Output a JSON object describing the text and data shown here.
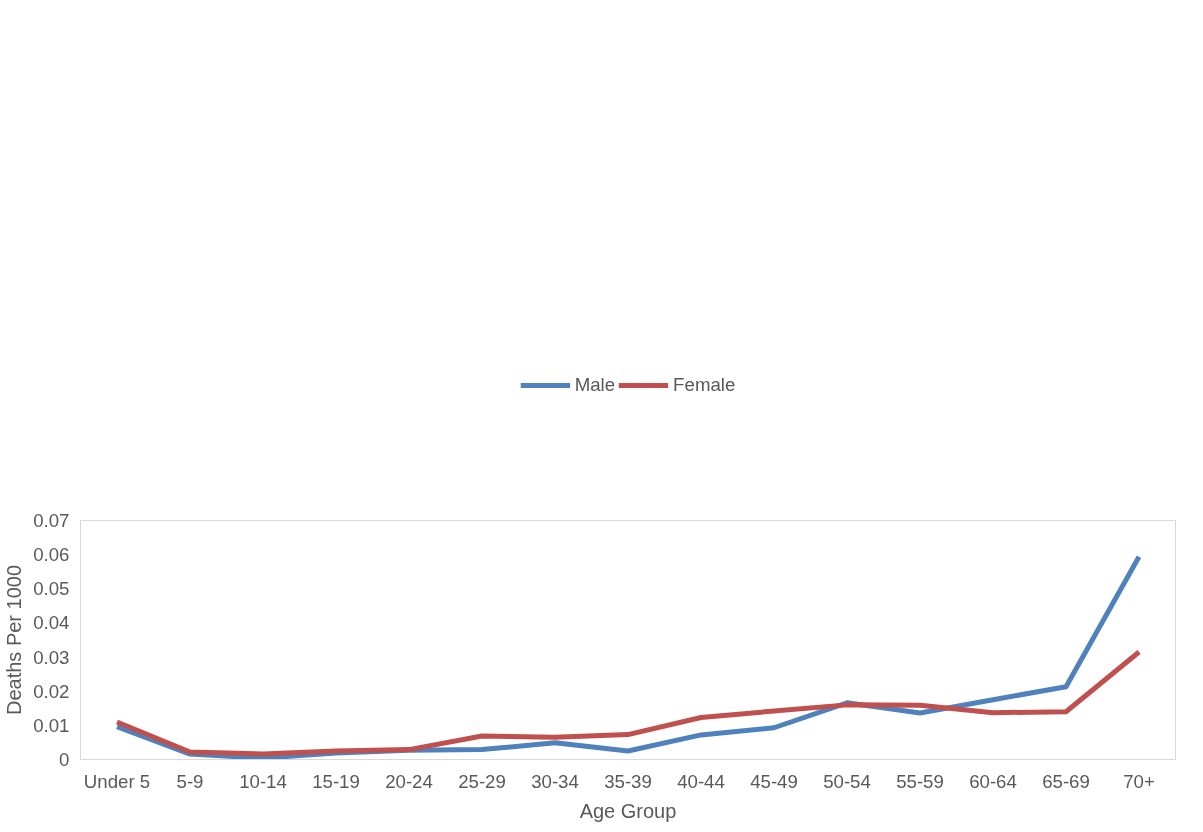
{
  "chart_data": {
    "type": "line",
    "xlabel": "Age Group",
    "ylabel": "Deaths Per 1000",
    "categories": [
      "Under 5",
      "5-9",
      "10-14",
      "15-19",
      "20-24",
      "25-29",
      "30-34",
      "35-39",
      "40-44",
      "45-49",
      "50-54",
      "55-59",
      "60-64",
      "65-69",
      "70+"
    ],
    "series": [
      {
        "name": "Male",
        "color": "#4f81bd",
        "values": [
          0.0096,
          0.0016,
          0.0004,
          0.0019,
          0.0027,
          0.0029,
          0.0049,
          0.0025,
          0.0072,
          0.0093,
          0.0166,
          0.0136,
          0.0175,
          0.0213,
          0.0594
        ]
      },
      {
        "name": "Female",
        "color": "#c0504d",
        "values": [
          0.011,
          0.0022,
          0.0016,
          0.0025,
          0.0029,
          0.0069,
          0.0065,
          0.0073,
          0.0123,
          0.0142,
          0.016,
          0.0159,
          0.0137,
          0.014,
          0.0315
        ]
      }
    ],
    "ylim": [
      0,
      0.07
    ],
    "yticks": [
      0,
      0.01,
      0.02,
      0.03,
      0.04,
      0.05,
      0.06,
      0.07
    ],
    "grid": false,
    "legend": "top",
    "marker": "none",
    "line_style": "solid"
  }
}
